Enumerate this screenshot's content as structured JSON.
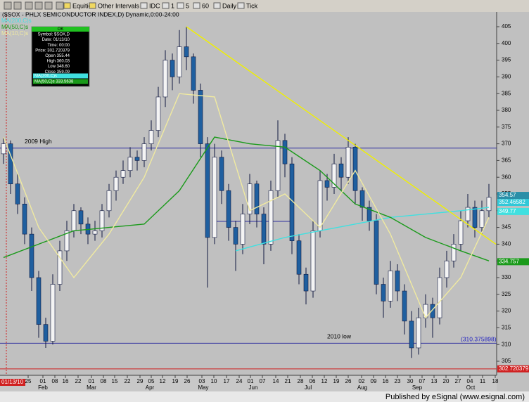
{
  "toolbar": {
    "items": [
      "Equities",
      "Other Intervals",
      "IDC",
      "1",
      "5",
      "60",
      "Daily",
      "Tick"
    ]
  },
  "footer": "Published by eSignal (www.esignal.com)",
  "chart_data": {
    "type": "candlestick",
    "title": "($SOX - PHLX SEMICONDUCTOR INDEX,D) Dynamic,0:00-24:00",
    "ohlc": [
      [
        367,
        372,
        364,
        370
      ],
      [
        370,
        371,
        355,
        358
      ],
      [
        358,
        361,
        349,
        352
      ],
      [
        352,
        354,
        340,
        343
      ],
      [
        343,
        345,
        326,
        330
      ],
      [
        330,
        332,
        312,
        316
      ],
      [
        316,
        318,
        309,
        311
      ],
      [
        311,
        331,
        310,
        328
      ],
      [
        328,
        341,
        326,
        338
      ],
      [
        338,
        347,
        335,
        344
      ],
      [
        344,
        352,
        342,
        350
      ],
      [
        350,
        351,
        343,
        346
      ],
      [
        346,
        348,
        340,
        343
      ],
      [
        343,
        347,
        341,
        344
      ],
      [
        344,
        352,
        342,
        350
      ],
      [
        350,
        358,
        348,
        356
      ],
      [
        356,
        362,
        353,
        360
      ],
      [
        360,
        365,
        358,
        362
      ],
      [
        362,
        369,
        360,
        366
      ],
      [
        366,
        368,
        362,
        365
      ],
      [
        365,
        372,
        363,
        370
      ],
      [
        370,
        377,
        368,
        374
      ],
      [
        374,
        387,
        372,
        384
      ],
      [
        384,
        398,
        381,
        395
      ],
      [
        395,
        397,
        386,
        390
      ],
      [
        390,
        404,
        388,
        399
      ],
      [
        399,
        405,
        392,
        396
      ],
      [
        396,
        397,
        382,
        386
      ],
      [
        386,
        388,
        366,
        370
      ],
      [
        370,
        372,
        327,
        342
      ],
      [
        342,
        370,
        340,
        366
      ],
      [
        366,
        368,
        352,
        356
      ],
      [
        356,
        358,
        341,
        345
      ],
      [
        345,
        347,
        332,
        340
      ],
      [
        340,
        352,
        337,
        349
      ],
      [
        349,
        361,
        346,
        358
      ],
      [
        358,
        359,
        345,
        349
      ],
      [
        349,
        351,
        334,
        340
      ],
      [
        340,
        359,
        338,
        356
      ],
      [
        356,
        377,
        354,
        371
      ],
      [
        371,
        373,
        360,
        364
      ],
      [
        364,
        366,
        337,
        341
      ],
      [
        341,
        343,
        328,
        331
      ],
      [
        331,
        333,
        322,
        326
      ],
      [
        326,
        347,
        324,
        344
      ],
      [
        344,
        362,
        342,
        359
      ],
      [
        359,
        361,
        353,
        357
      ],
      [
        357,
        367,
        355,
        364
      ],
      [
        364,
        366,
        356,
        360
      ],
      [
        360,
        372,
        358,
        369
      ],
      [
        369,
        370,
        352,
        356
      ],
      [
        356,
        357,
        347,
        351
      ],
      [
        351,
        353,
        344,
        347
      ],
      [
        347,
        349,
        325,
        328
      ],
      [
        328,
        330,
        318,
        323
      ],
      [
        323,
        335,
        321,
        332
      ],
      [
        332,
        334,
        323,
        326
      ],
      [
        326,
        328,
        313,
        317
      ],
      [
        317,
        320,
        306,
        309
      ],
      [
        309,
        321,
        307,
        318
      ],
      [
        318,
        325,
        315,
        322
      ],
      [
        322,
        324,
        312,
        318
      ],
      [
        318,
        333,
        316,
        330
      ],
      [
        330,
        338,
        327,
        335
      ],
      [
        335,
        343,
        333,
        340
      ],
      [
        340,
        350,
        338,
        347
      ],
      [
        347,
        355,
        345,
        351
      ],
      [
        351,
        353,
        342,
        345
      ],
      [
        345,
        353,
        343,
        350
      ],
      [
        350,
        358,
        348,
        354
      ]
    ],
    "up_color": "#f4f4f4",
    "down_color": "#1f5f9f",
    "wick_color": "#101840",
    "series": [
      {
        "name": "MA(200,C)s",
        "color": "#40e0e0",
        "x": [
          33,
          40,
          45,
          50,
          55,
          60,
          65,
          69
        ],
        "values": [
          338,
          342,
          344,
          346,
          348,
          349,
          350,
          351
        ]
      },
      {
        "name": "MA(50,C)s",
        "color": "#1a9a1a",
        "x": [
          0,
          5,
          10,
          15,
          20,
          25,
          30,
          35,
          40,
          45,
          50,
          55,
          60,
          65,
          69
        ],
        "values": [
          336,
          340,
          344,
          345,
          346,
          356,
          372,
          370,
          369,
          362,
          352,
          348,
          342,
          338,
          335
        ]
      },
      {
        "name": "MA(10,C)s",
        "color": "#f0eaa0",
        "x": [
          0,
          5,
          10,
          15,
          20,
          25,
          30,
          35,
          40,
          45,
          50,
          55,
          60,
          65,
          69
        ],
        "values": [
          372,
          345,
          330,
          343,
          360,
          385,
          384,
          350,
          355,
          345,
          362,
          343,
          318,
          330,
          348
        ]
      }
    ],
    "trendline": {
      "color": "#f0f000",
      "x": [
        26,
        70
      ],
      "values": [
        405,
        340
      ]
    },
    "hlines": [
      {
        "value": 368.7,
        "label": "2009 High",
        "color": "#3030a0"
      },
      {
        "value": 310.375898,
        "label": "2010 low",
        "color": "#3030a0"
      },
      {
        "value": 302.720379,
        "color": "#d02020"
      },
      {
        "value": 346.8,
        "color": "#3030a0",
        "x": [
          30,
          41
        ]
      }
    ],
    "low_label": {
      "value": 310.375898,
      "label": "(310.375898)"
    },
    "price_labels": [
      {
        "value": 354.57,
        "label": "354.57",
        "color": "#2a8fa8"
      },
      {
        "value": 352.46582,
        "label": "352.46582",
        "color": "#30c8d8"
      },
      {
        "value": 349.77,
        "label": "349.77",
        "color": "#40e0e0"
      },
      {
        "value": 334.757,
        "label": "334.757",
        "color": "#1a9a1a"
      },
      {
        "value": 302.720379,
        "label": "302.720379",
        "color": "#d02020"
      }
    ],
    "xlim": [
      -0.5,
      70.1
    ],
    "ylim": [
      300.8,
      409.2
    ],
    "yticks": [
      305,
      310,
      315,
      320,
      325,
      330,
      335,
      340,
      345,
      350,
      355,
      360,
      365,
      370,
      375,
      380,
      385,
      390,
      395,
      400,
      405
    ],
    "xticks": [
      {
        "value": 3.5,
        "label": "25"
      },
      {
        "value": 5.6,
        "label": "01"
      },
      {
        "value": 7.3,
        "label": "08"
      },
      {
        "value": 8.8,
        "label": "16"
      },
      {
        "value": 10.6,
        "label": "22"
      },
      {
        "value": 12.5,
        "label": "01"
      },
      {
        "value": 14.2,
        "label": "08"
      },
      {
        "value": 15.8,
        "label": "15"
      },
      {
        "value": 17.6,
        "label": "22"
      },
      {
        "value": 19.4,
        "label": "29"
      },
      {
        "value": 21,
        "label": "05"
      },
      {
        "value": 22.6,
        "label": "12"
      },
      {
        "value": 24.4,
        "label": "19"
      },
      {
        "value": 26.1,
        "label": "26"
      },
      {
        "value": 28.2,
        "label": "03"
      },
      {
        "value": 29.9,
        "label": "10"
      },
      {
        "value": 31.7,
        "label": "17"
      },
      {
        "value": 33.5,
        "label": "24"
      },
      {
        "value": 35.1,
        "label": "01"
      },
      {
        "value": 36.8,
        "label": "07"
      },
      {
        "value": 38.7,
        "label": "14"
      },
      {
        "value": 40.4,
        "label": "21"
      },
      {
        "value": 42.2,
        "label": "28"
      },
      {
        "value": 43.9,
        "label": "06"
      },
      {
        "value": 45.6,
        "label": "12"
      },
      {
        "value": 47.3,
        "label": "19"
      },
      {
        "value": 49,
        "label": "26"
      },
      {
        "value": 50.9,
        "label": "02"
      },
      {
        "value": 52.6,
        "label": "09"
      },
      {
        "value": 54.3,
        "label": "16"
      },
      {
        "value": 56,
        "label": "23"
      },
      {
        "value": 57.8,
        "label": "30"
      },
      {
        "value": 59.5,
        "label": "07"
      },
      {
        "value": 61.2,
        "label": "13"
      },
      {
        "value": 62.9,
        "label": "20"
      },
      {
        "value": 64.6,
        "label": "27"
      },
      {
        "value": 66.3,
        "label": "04"
      },
      {
        "value": 68.1,
        "label": "11"
      },
      {
        "value": 69.9,
        "label": "18"
      }
    ],
    "months": [
      {
        "value": 5.6,
        "label": "Feb"
      },
      {
        "value": 12.5,
        "label": "Mar"
      },
      {
        "value": 20.8,
        "label": "Apr"
      },
      {
        "value": 28.4,
        "label": "May"
      },
      {
        "value": 35.5,
        "label": "Jun"
      },
      {
        "value": 43.3,
        "label": "Jul"
      },
      {
        "value": 51,
        "label": "Aug"
      },
      {
        "value": 58.8,
        "label": "Sep"
      },
      {
        "value": 66.4,
        "label": "Oct"
      }
    ],
    "date_label": "01/13/10",
    "info_box": {
      "header": "OK",
      "rows": [
        "Symbol: $SOX,D",
        "Date: 01/13/10",
        "Time: 00:00",
        "Price: 302.720379",
        "Open 355.44",
        "High 360.03",
        "Low 348.60",
        "Close 359.09"
      ],
      "ma_rows": [
        "MA(200,C)s",
        "MA(50,C)s 333.5638"
      ]
    }
  }
}
